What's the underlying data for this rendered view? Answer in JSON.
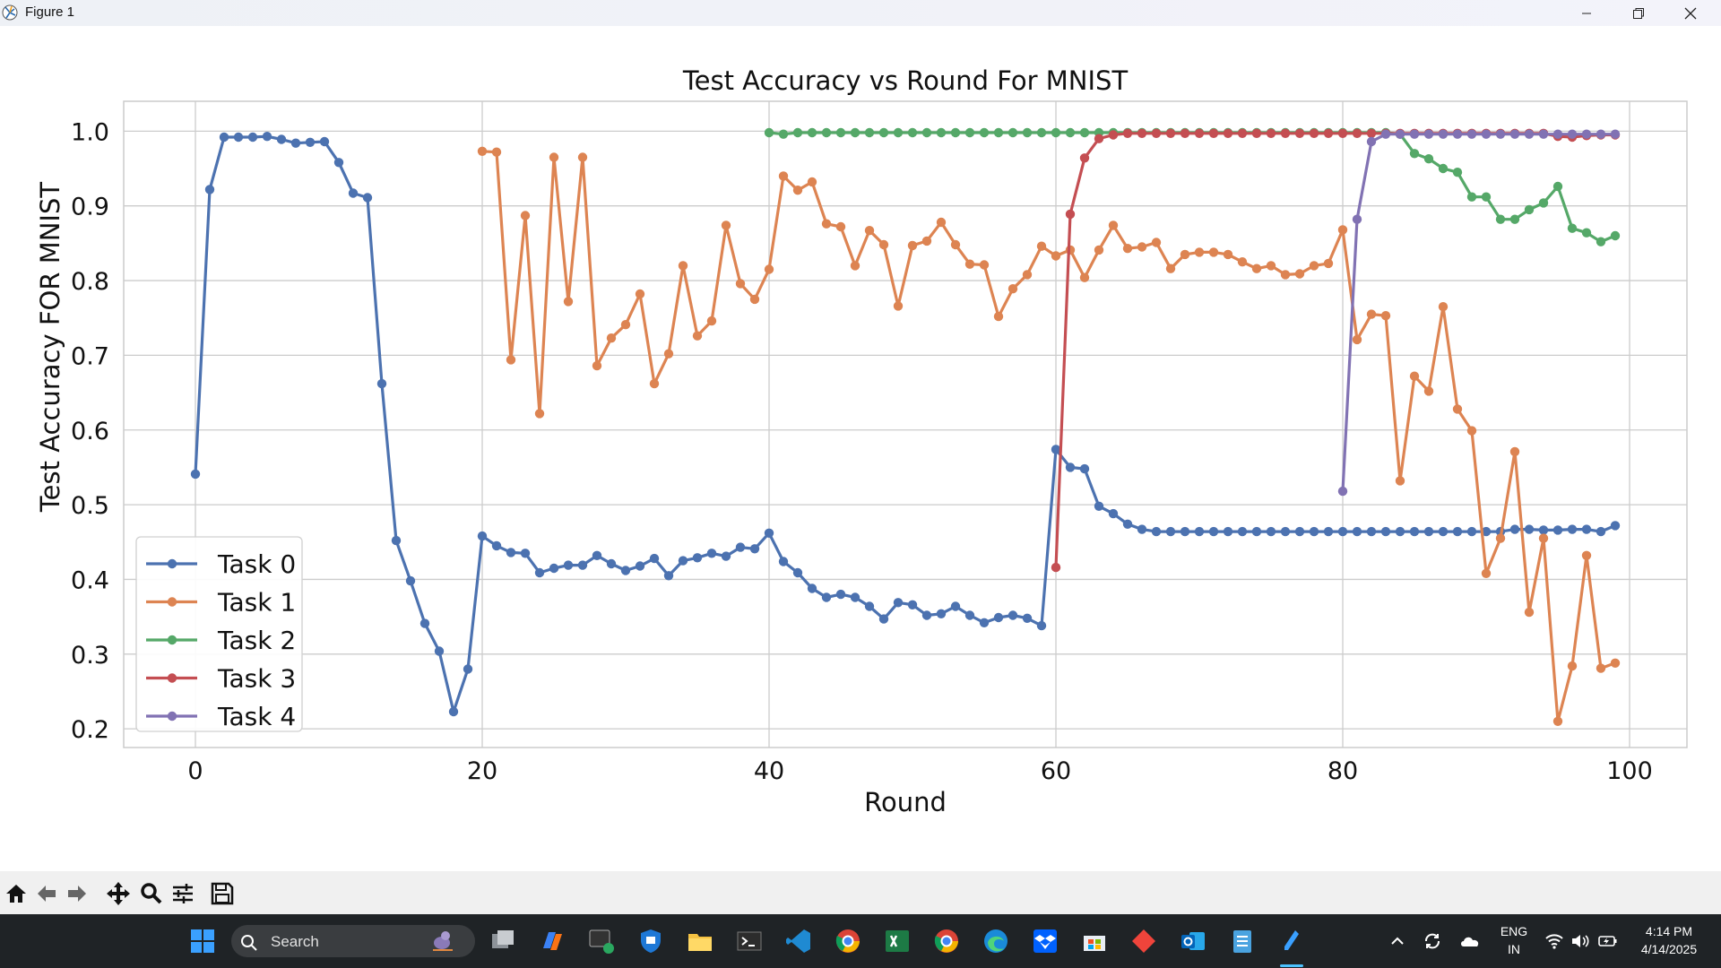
{
  "window": {
    "title": "Figure 1"
  },
  "chart_data": {
    "type": "line",
    "title": "Test Accuracy vs Round For MNIST",
    "xlabel": "Round",
    "ylabel": "Test Accuracy FOR MNIST",
    "xlim": [
      -5,
      104
    ],
    "ylim": [
      0.175,
      1.04
    ],
    "xticks": [
      0,
      20,
      40,
      60,
      80,
      100
    ],
    "yticks": [
      0.2,
      0.3,
      0.4,
      0.5,
      0.6,
      0.7,
      0.8,
      0.9,
      1.0
    ],
    "grid": true,
    "legend_position": "lower left",
    "series": [
      {
        "name": "Task 0",
        "color": "#4c72b0",
        "x_start": 0,
        "values": [
          0.541,
          0.922,
          0.992,
          0.992,
          0.992,
          0.993,
          0.989,
          0.984,
          0.985,
          0.986,
          0.958,
          0.917,
          0.911,
          0.662,
          0.452,
          0.398,
          0.341,
          0.304,
          0.223,
          0.28,
          0.458,
          0.445,
          0.436,
          0.435,
          0.409,
          0.415,
          0.419,
          0.419,
          0.432,
          0.421,
          0.412,
          0.418,
          0.428,
          0.405,
          0.425,
          0.429,
          0.435,
          0.431,
          0.443,
          0.441,
          0.462,
          0.424,
          0.409,
          0.388,
          0.376,
          0.38,
          0.376,
          0.364,
          0.347,
          0.369,
          0.366,
          0.352,
          0.354,
          0.364,
          0.352,
          0.342,
          0.349,
          0.352,
          0.348,
          0.338,
          0.574,
          0.55,
          0.548,
          0.498,
          0.488,
          0.474,
          0.467,
          0.464,
          0.464,
          0.464,
          0.464,
          0.464,
          0.464,
          0.464,
          0.464,
          0.464,
          0.464,
          0.464,
          0.464,
          0.464,
          0.464,
          0.464,
          0.464,
          0.464,
          0.464,
          0.464,
          0.464,
          0.464,
          0.464,
          0.464,
          0.464,
          0.464,
          0.467,
          0.467,
          0.466,
          0.466,
          0.467,
          0.467,
          0.464,
          0.472
        ]
      },
      {
        "name": "Task 1",
        "color": "#dd8452",
        "x_start": 20,
        "values": [
          0.973,
          0.972,
          0.694,
          0.887,
          0.622,
          0.965,
          0.772,
          0.965,
          0.686,
          0.723,
          0.741,
          0.782,
          0.662,
          0.702,
          0.82,
          0.726,
          0.746,
          0.874,
          0.796,
          0.775,
          0.815,
          0.94,
          0.921,
          0.932,
          0.876,
          0.872,
          0.82,
          0.867,
          0.848,
          0.766,
          0.847,
          0.853,
          0.878,
          0.848,
          0.822,
          0.821,
          0.752,
          0.789,
          0.808,
          0.846,
          0.833,
          0.841,
          0.804,
          0.841,
          0.874,
          0.843,
          0.845,
          0.851,
          0.816,
          0.835,
          0.838,
          0.838,
          0.835,
          0.825,
          0.816,
          0.82,
          0.808,
          0.809,
          0.82,
          0.823,
          0.868,
          0.721,
          0.755,
          0.753,
          0.532,
          0.672,
          0.652,
          0.765,
          0.628,
          0.599,
          0.408,
          0.455,
          0.571,
          0.356,
          0.455,
          0.21,
          0.284,
          0.432,
          0.281,
          0.288
        ]
      },
      {
        "name": "Task 2",
        "color": "#55a868",
        "x_start": 40,
        "values": [
          0.998,
          0.996,
          0.998,
          0.998,
          0.998,
          0.998,
          0.998,
          0.998,
          0.998,
          0.998,
          0.998,
          0.998,
          0.998,
          0.998,
          0.998,
          0.998,
          0.998,
          0.998,
          0.998,
          0.998,
          0.998,
          0.998,
          0.998,
          0.998,
          0.998,
          0.998,
          0.998,
          0.998,
          0.998,
          0.998,
          0.998,
          0.998,
          0.998,
          0.998,
          0.998,
          0.998,
          0.998,
          0.998,
          0.998,
          0.998,
          0.998,
          0.998,
          0.998,
          0.998,
          0.996,
          0.97,
          0.963,
          0.95,
          0.945,
          0.912,
          0.912,
          0.882,
          0.882,
          0.895,
          0.904,
          0.926,
          0.87,
          0.864,
          0.852,
          0.86
        ]
      },
      {
        "name": "Task 3",
        "color": "#c44e52",
        "x_start": 60,
        "values": [
          0.416,
          0.889,
          0.964,
          0.99,
          0.995,
          0.997,
          0.997,
          0.997,
          0.997,
          0.997,
          0.997,
          0.997,
          0.997,
          0.997,
          0.997,
          0.997,
          0.997,
          0.997,
          0.997,
          0.997,
          0.997,
          0.997,
          0.997,
          0.997,
          0.997,
          0.997,
          0.997,
          0.997,
          0.997,
          0.997,
          0.997,
          0.997,
          0.997,
          0.997,
          0.997,
          0.993,
          0.992,
          0.994,
          0.995,
          0.995
        ]
      },
      {
        "name": "Task 4",
        "color": "#8172b3",
        "x_start": 80,
        "values": [
          0.518,
          0.882,
          0.986,
          0.996,
          0.996,
          0.996,
          0.996,
          0.996,
          0.996,
          0.996,
          0.996,
          0.996,
          0.996,
          0.996,
          0.996,
          0.996,
          0.996,
          0.996,
          0.996,
          0.996
        ]
      }
    ]
  },
  "toolbar": {
    "tools": [
      "home-icon",
      "back-arrow-icon",
      "forward-arrow-icon",
      "pan-icon",
      "zoom-icon",
      "configure-subplots-icon",
      "save-icon"
    ]
  },
  "taskbar": {
    "search_label": "Search",
    "lang_line1": "ENG",
    "lang_line2": "IN",
    "time": "4:14 PM",
    "date": "4/14/2025"
  }
}
